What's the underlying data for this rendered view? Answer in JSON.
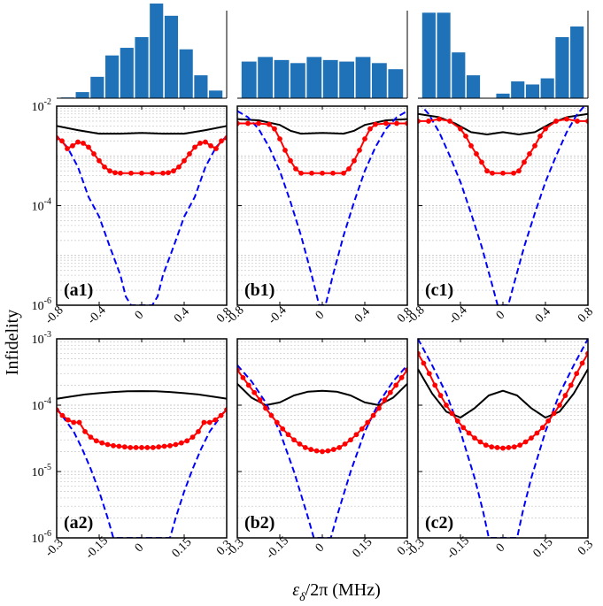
{
  "chart_data": {
    "type": "line",
    "ylabel": "Infidelity",
    "xlabel": "ε",
    "xlabel_sub": "δ",
    "xlabel_rest": "/2π (MHz)",
    "y_scale": "log",
    "ylim_row1": [
      1e-06,
      0.01
    ],
    "ylim_row2": [
      1e-06,
      0.001
    ],
    "yticks_row1": [
      {
        "value": 0.01,
        "base": "10",
        "exp": "-2"
      },
      {
        "value": 0.0001,
        "base": "10",
        "exp": "-4"
      },
      {
        "value": 1e-06,
        "base": "10",
        "exp": "-6"
      }
    ],
    "yticks_row2": [
      {
        "value": 0.001,
        "base": "10",
        "exp": "-3"
      },
      {
        "value": 0.0001,
        "base": "10",
        "exp": "-4"
      },
      {
        "value": 1e-05,
        "base": "10",
        "exp": "-5"
      },
      {
        "value": 1e-06,
        "base": "10",
        "exp": "-6"
      }
    ],
    "xlim_row1": [
      -0.8,
      0.8
    ],
    "xticks_row1": [
      -0.8,
      -0.4,
      0,
      0.4,
      0.8
    ],
    "xticklabels_row1": [
      "-0.8",
      "-0.4",
      "0",
      "0.4",
      "0.8"
    ],
    "xlim_row2": [
      -0.3,
      0.3
    ],
    "xticks_row2": [
      -0.3,
      -0.15,
      0,
      0.15,
      0.3
    ],
    "xticklabels_row2": [
      "-0.3",
      "-0.15",
      "0",
      "0.15",
      "0.3"
    ],
    "series_styles": [
      {
        "name": "solid",
        "color": "#000000",
        "style": "solid"
      },
      {
        "name": "dashed",
        "color": "#0000ff",
        "style": "dashed"
      },
      {
        "name": "dotted-markers",
        "color": "#ff0000",
        "style": "line+markers"
      }
    ],
    "histograms": [
      {
        "column": "a",
        "values": [
          0.5,
          4,
          14,
          28,
          33,
          40,
          62,
          54,
          32,
          15,
          5
        ]
      },
      {
        "column": "b",
        "values": [
          24,
          27,
          25,
          23,
          27,
          25,
          24,
          27,
          23,
          19
        ]
      },
      {
        "column": "c",
        "values": [
          56,
          56,
          30,
          15,
          0,
          3,
          11,
          9,
          13,
          40,
          47
        ]
      }
    ],
    "panels": [
      {
        "label": "(a1)",
        "row": 1,
        "column": "a",
        "series": [
          {
            "name": "solid",
            "x": [
              -0.8,
              -0.6,
              -0.4,
              -0.2,
              0,
              0.2,
              0.4,
              0.6,
              0.8
            ],
            "y": [
              0.004,
              0.0033,
              0.0028,
              0.0028,
              0.0029,
              0.0028,
              0.0028,
              0.0033,
              0.004
            ]
          },
          {
            "name": "dashed",
            "x": [
              -0.8,
              -0.7,
              -0.6,
              -0.5,
              -0.4,
              -0.3,
              -0.2,
              -0.15,
              -0.1,
              0.1,
              0.15,
              0.2,
              0.3,
              0.4,
              0.5,
              0.6,
              0.7,
              0.8
            ],
            "y": [
              0.0025,
              0.0015,
              0.0006,
              0.00015,
              6e-05,
              1.5e-05,
              4e-06,
              1.5e-06,
              1e-06,
              1e-06,
              1.5e-06,
              4e-06,
              1.5e-05,
              6e-05,
              0.00015,
              0.0006,
              0.0015,
              0.0025
            ]
          },
          {
            "name": "dotted-markers",
            "x": [
              -0.8,
              -0.75,
              -0.7,
              -0.65,
              -0.6,
              -0.55,
              -0.5,
              -0.45,
              -0.4,
              -0.35,
              -0.3,
              -0.25,
              -0.2,
              -0.1,
              0,
              0.1,
              0.2,
              0.25,
              0.3,
              0.35,
              0.4,
              0.45,
              0.5,
              0.55,
              0.6,
              0.65,
              0.7,
              0.75,
              0.8
            ],
            "y": [
              0.0023,
              0.002,
              0.0014,
              0.0016,
              0.0019,
              0.0018,
              0.0015,
              0.0011,
              0.0008,
              0.0006,
              0.0005,
              0.00046,
              0.00045,
              0.00045,
              0.00045,
              0.00045,
              0.00045,
              0.00046,
              0.0005,
              0.0006,
              0.0008,
              0.0011,
              0.0015,
              0.0018,
              0.0019,
              0.0016,
              0.0014,
              0.002,
              0.0023
            ]
          }
        ]
      },
      {
        "label": "(b1)",
        "row": 1,
        "column": "b",
        "series": [
          {
            "name": "solid",
            "x": [
              -0.8,
              -0.6,
              -0.4,
              -0.3,
              -0.2,
              0,
              0.2,
              0.3,
              0.4,
              0.6,
              0.8
            ],
            "y": [
              0.0055,
              0.0052,
              0.0042,
              0.0032,
              0.0028,
              0.0029,
              0.0028,
              0.0032,
              0.0042,
              0.0052,
              0.0055
            ]
          },
          {
            "name": "dashed",
            "x": [
              -0.8,
              -0.7,
              -0.6,
              -0.5,
              -0.4,
              -0.3,
              -0.2,
              -0.1,
              -0.03,
              0.03,
              0.1,
              0.2,
              0.3,
              0.4,
              0.5,
              0.6,
              0.7,
              0.8
            ],
            "y": [
              0.008,
              0.006,
              0.0035,
              0.0015,
              0.0005,
              0.00012,
              2.5e-05,
              4e-06,
              1e-06,
              1e-06,
              4e-06,
              2.5e-05,
              0.00012,
              0.0005,
              0.0015,
              0.0035,
              0.006,
              0.008
            ]
          },
          {
            "name": "dotted-markers",
            "x": [
              -0.8,
              -0.7,
              -0.6,
              -0.5,
              -0.45,
              -0.4,
              -0.35,
              -0.3,
              -0.25,
              -0.2,
              -0.1,
              0,
              0.1,
              0.2,
              0.25,
              0.3,
              0.35,
              0.4,
              0.45,
              0.5,
              0.6,
              0.7,
              0.8
            ],
            "y": [
              0.0045,
              0.0045,
              0.0045,
              0.0043,
              0.0035,
              0.0022,
              0.0013,
              0.0008,
              0.00055,
              0.00045,
              0.00045,
              0.00045,
              0.00045,
              0.00045,
              0.00055,
              0.0008,
              0.0013,
              0.0022,
              0.0035,
              0.0043,
              0.0045,
              0.0045,
              0.0045
            ]
          }
        ]
      },
      {
        "label": "(c1)",
        "row": 1,
        "column": "c",
        "series": [
          {
            "name": "solid",
            "x": [
              -0.8,
              -0.6,
              -0.45,
              -0.3,
              -0.15,
              0,
              0.15,
              0.3,
              0.45,
              0.6,
              0.8
            ],
            "y": [
              0.007,
              0.006,
              0.0045,
              0.003,
              0.0027,
              0.003,
              0.0027,
              0.003,
              0.0045,
              0.006,
              0.007
            ]
          },
          {
            "name": "dashed",
            "x": [
              -0.8,
              -0.7,
              -0.6,
              -0.5,
              -0.4,
              -0.3,
              -0.2,
              -0.1,
              -0.05,
              0.05,
              0.1,
              0.2,
              0.3,
              0.4,
              0.5,
              0.6,
              0.7,
              0.8
            ],
            "y": [
              0.012,
              0.007,
              0.003,
              0.001,
              0.0003,
              7e-05,
              1.5e-05,
              2.5e-06,
              1e-06,
              1e-06,
              2.5e-06,
              1.5e-05,
              7e-05,
              0.0003,
              0.001,
              0.003,
              0.007,
              0.012
            ]
          },
          {
            "name": "dotted-markers",
            "x": [
              -0.8,
              -0.7,
              -0.6,
              -0.5,
              -0.4,
              -0.35,
              -0.3,
              -0.25,
              -0.2,
              -0.15,
              -0.1,
              0,
              0.1,
              0.15,
              0.2,
              0.25,
              0.3,
              0.35,
              0.4,
              0.5,
              0.6,
              0.7,
              0.8
            ],
            "y": [
              0.005,
              0.005,
              0.0055,
              0.005,
              0.0035,
              0.0025,
              0.0016,
              0.0011,
              0.00075,
              0.0005,
              0.00045,
              0.00045,
              0.00045,
              0.0005,
              0.00075,
              0.0011,
              0.0016,
              0.0025,
              0.0035,
              0.005,
              0.0055,
              0.005,
              0.005
            ]
          }
        ]
      },
      {
        "label": "(a2)",
        "row": 2,
        "column": "a",
        "series": [
          {
            "name": "solid",
            "x": [
              -0.3,
              -0.25,
              -0.2,
              -0.15,
              -0.1,
              -0.05,
              0,
              0.05,
              0.1,
              0.15,
              0.2,
              0.25,
              0.3
            ],
            "y": [
              0.000125,
              0.000135,
              0.000145,
              0.000152,
              0.000158,
              0.000162,
              0.000163,
              0.000162,
              0.000158,
              0.000152,
              0.000145,
              0.000135,
              0.000125
            ]
          },
          {
            "name": "dashed",
            "x": [
              -0.3,
              -0.27,
              -0.24,
              -0.21,
              -0.18,
              -0.15,
              -0.12,
              -0.1,
              0.1,
              0.12,
              0.15,
              0.18,
              0.21,
              0.24,
              0.27,
              0.3
            ],
            "y": [
              9e-05,
              6e-05,
              4e-05,
              2.2e-05,
              1.1e-05,
              5e-06,
              2e-06,
              1e-06,
              1e-06,
              2e-06,
              5e-06,
              1.1e-05,
              2.2e-05,
              4e-05,
              6e-05,
              9e-05
            ]
          },
          {
            "name": "dotted-markers",
            "x": [
              -0.3,
              -0.28,
              -0.26,
              -0.24,
              -0.22,
              -0.2,
              -0.18,
              -0.16,
              -0.14,
              -0.12,
              -0.1,
              -0.08,
              -0.06,
              -0.04,
              -0.02,
              0,
              0.02,
              0.04,
              0.06,
              0.08,
              0.1,
              0.12,
              0.14,
              0.16,
              0.18,
              0.2,
              0.22,
              0.24,
              0.26,
              0.28,
              0.3
            ],
            "y": [
              8.5e-05,
              7e-05,
              6e-05,
              5.5e-05,
              5.5e-05,
              4e-05,
              3.3e-05,
              2.9e-05,
              2.7e-05,
              2.55e-05,
              2.45e-05,
              2.4e-05,
              2.35e-05,
              2.3e-05,
              2.3e-05,
              2.3e-05,
              2.3e-05,
              2.3e-05,
              2.35e-05,
              2.4e-05,
              2.45e-05,
              2.55e-05,
              2.7e-05,
              2.9e-05,
              3.3e-05,
              4e-05,
              5.5e-05,
              5.5e-05,
              6e-05,
              7e-05,
              8.5e-05
            ]
          }
        ]
      },
      {
        "label": "(b2)",
        "row": 2,
        "column": "b",
        "series": [
          {
            "name": "solid",
            "x": [
              -0.3,
              -0.25,
              -0.2,
              -0.15,
              -0.1,
              -0.05,
              0,
              0.05,
              0.1,
              0.15,
              0.2,
              0.25,
              0.3
            ],
            "y": [
              0.00021,
              0.00013,
              0.0001,
              0.00011,
              0.00014,
              0.00016,
              0.000165,
              0.00016,
              0.00014,
              0.00011,
              0.0001,
              0.00013,
              0.00021
            ]
          },
          {
            "name": "dashed",
            "x": [
              -0.3,
              -0.25,
              -0.2,
              -0.15,
              -0.1,
              -0.05,
              -0.03,
              0.03,
              0.05,
              0.1,
              0.15,
              0.2,
              0.25,
              0.3
            ],
            "y": [
              0.0004,
              0.00023,
              0.00011,
              4e-05,
              1e-05,
              2e-06,
              1e-06,
              1e-06,
              2e-06,
              1e-05,
              4e-05,
              0.00011,
              0.00023,
              0.0004
            ]
          },
          {
            "name": "dotted-markers",
            "x": [
              -0.3,
              -0.28,
              -0.26,
              -0.24,
              -0.22,
              -0.2,
              -0.18,
              -0.16,
              -0.14,
              -0.12,
              -0.1,
              -0.08,
              -0.06,
              -0.04,
              -0.02,
              0,
              0.02,
              0.04,
              0.06,
              0.08,
              0.1,
              0.12,
              0.14,
              0.16,
              0.18,
              0.2,
              0.22,
              0.24,
              0.26,
              0.28,
              0.3
            ],
            "y": [
              0.00034,
              0.00026,
              0.0002,
              0.000155,
              0.00012,
              9e-05,
              7e-05,
              5.5e-05,
              4.4e-05,
              3.6e-05,
              3e-05,
              2.6e-05,
              2.3e-05,
              2.15e-05,
              2.05e-05,
              2e-05,
              2.05e-05,
              2.15e-05,
              2.3e-05,
              2.6e-05,
              3e-05,
              3.6e-05,
              4.4e-05,
              5.5e-05,
              7e-05,
              9e-05,
              0.00012,
              0.000155,
              0.0002,
              0.00026,
              0.00034
            ]
          }
        ]
      },
      {
        "label": "(c2)",
        "row": 2,
        "column": "c",
        "series": [
          {
            "name": "solid",
            "x": [
              -0.3,
              -0.25,
              -0.2,
              -0.15,
              -0.1,
              -0.05,
              0,
              0.05,
              0.1,
              0.15,
              0.2,
              0.25,
              0.3
            ],
            "y": [
              0.00035,
              0.00015,
              8e-05,
              6.5e-05,
              9e-05,
              0.00014,
              0.000165,
              0.00014,
              9e-05,
              6.5e-05,
              8e-05,
              0.00015,
              0.00035
            ]
          },
          {
            "name": "dashed",
            "x": [
              -0.3,
              -0.25,
              -0.2,
              -0.15,
              -0.1,
              -0.07,
              -0.05,
              0.05,
              0.07,
              0.1,
              0.15,
              0.2,
              0.25,
              0.3
            ],
            "y": [
              0.001,
              0.0004,
              0.00015,
              4e-05,
              8e-06,
              2.5e-06,
              1e-06,
              1e-06,
              2.5e-06,
              8e-06,
              4e-05,
              0.00015,
              0.0004,
              0.001
            ]
          },
          {
            "name": "dotted-markers",
            "x": [
              -0.3,
              -0.28,
              -0.26,
              -0.24,
              -0.22,
              -0.2,
              -0.18,
              -0.16,
              -0.14,
              -0.12,
              -0.1,
              -0.08,
              -0.06,
              -0.04,
              -0.02,
              0,
              0.02,
              0.04,
              0.06,
              0.08,
              0.1,
              0.12,
              0.14,
              0.16,
              0.18,
              0.2,
              0.22,
              0.24,
              0.26,
              0.28,
              0.3
            ],
            "y": [
              0.0006,
              0.00043,
              0.0003,
              0.0002,
              0.00014,
              0.0001,
              7.5e-05,
              5.8e-05,
              4.6e-05,
              3.8e-05,
              3.2e-05,
              2.8e-05,
              2.5e-05,
              2.35e-05,
              2.3e-05,
              2.25e-05,
              2.3e-05,
              2.35e-05,
              2.5e-05,
              2.8e-05,
              3.2e-05,
              3.8e-05,
              4.6e-05,
              5.8e-05,
              7.5e-05,
              0.0001,
              0.00014,
              0.0002,
              0.0003,
              0.00043,
              0.0006
            ]
          }
        ]
      }
    ]
  }
}
